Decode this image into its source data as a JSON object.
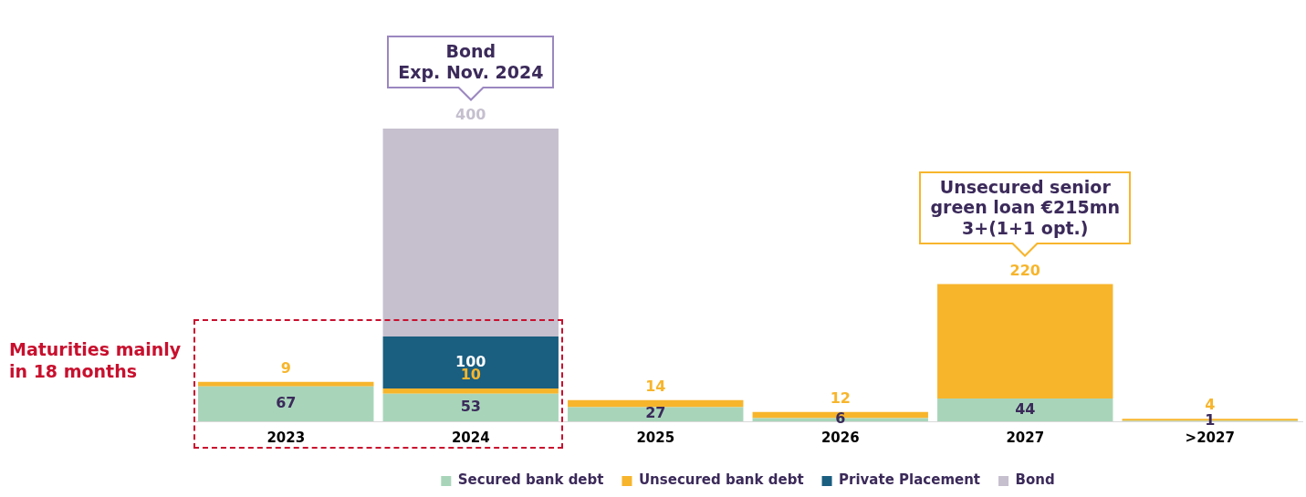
{
  "chart_data": {
    "type": "bar",
    "stacked": true,
    "data_labels": true,
    "legend": "bottom",
    "grid": false,
    "categories": [
      "2023",
      "2024",
      "2025",
      "2026",
      "2027",
      ">2027"
    ],
    "series": [
      {
        "name": "Secured bank debt",
        "color": "#a8d5ba",
        "values": [
          67,
          53,
          27,
          6,
          44,
          1
        ]
      },
      {
        "name": "Unsecured bank debt",
        "color": "#f7b52c",
        "values": [
          9,
          10,
          14,
          12,
          220,
          4
        ]
      },
      {
        "name": "Private Placement",
        "color": "#1a5e80",
        "values": [
          null,
          100,
          null,
          null,
          null,
          null
        ]
      },
      {
        "name": "Bond",
        "color": "#c5bfce",
        "values": [
          null,
          400,
          null,
          null,
          null,
          null
        ]
      }
    ],
    "annotations": [
      {
        "text": "Bond\nExp. Nov. 2024",
        "x": "2024",
        "y": 563
      },
      {
        "text": "Unsecured senior\ngreen loan €215mn\n3+(1+1 opt.)",
        "x": "2027",
        "y": 264
      },
      "Maturities mainly\nin 18 months"
    ]
  }
}
